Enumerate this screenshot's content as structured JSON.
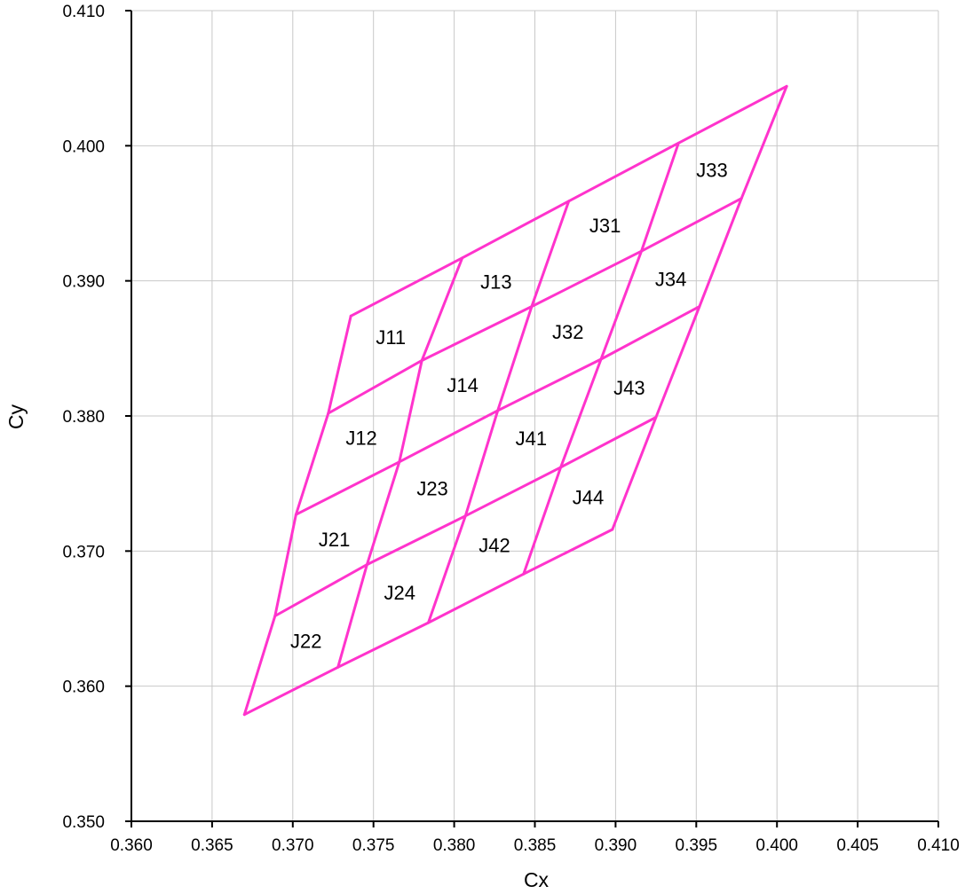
{
  "chart_data": {
    "type": "line",
    "title": "",
    "xlabel": "Cx",
    "ylabel": "Cy",
    "xlim": [
      0.36,
      0.41
    ],
    "ylim": [
      0.35,
      0.41
    ],
    "grid": true,
    "x_ticks": [
      "0.360",
      "0.365",
      "0.370",
      "0.375",
      "0.380",
      "0.385",
      "0.390",
      "0.395",
      "0.400",
      "0.405",
      "0.410"
    ],
    "y_ticks": [
      "0.350",
      "0.360",
      "0.370",
      "0.380",
      "0.390",
      "0.400",
      "0.410"
    ],
    "line_color": "#ff33cc",
    "grid_points": [
      [
        [
          0.3736,
          0.3874
        ],
        [
          0.3805,
          0.3917
        ],
        [
          0.3871,
          0.3959
        ],
        [
          0.3939,
          0.4002
        ],
        [
          0.4006,
          0.4044
        ]
      ],
      [
        [
          0.3722,
          0.3802
        ],
        [
          0.378,
          0.3841
        ],
        [
          0.3848,
          0.3881
        ],
        [
          0.3916,
          0.3922
        ],
        [
          0.3978,
          0.3961
        ]
      ],
      [
        [
          0.3702,
          0.3727
        ],
        [
          0.3766,
          0.3766
        ],
        [
          0.3827,
          0.3804
        ],
        [
          0.3891,
          0.3842
        ],
        [
          0.3952,
          0.3881
        ]
      ],
      [
        [
          0.3689,
          0.3652
        ],
        [
          0.3746,
          0.369
        ],
        [
          0.3807,
          0.3726
        ],
        [
          0.3866,
          0.3762
        ],
        [
          0.3925,
          0.3799
        ]
      ],
      [
        [
          0.367,
          0.3579
        ],
        [
          0.3728,
          0.3614
        ],
        [
          0.3784,
          0.3647
        ],
        [
          0.3843,
          0.3683
        ],
        [
          0.3898,
          0.3716
        ]
      ]
    ],
    "bins": [
      {
        "label": "J11",
        "row": 0,
        "col": 0
      },
      {
        "label": "J13",
        "row": 0,
        "col": 1
      },
      {
        "label": "J31",
        "row": 0,
        "col": 2
      },
      {
        "label": "J33",
        "row": 0,
        "col": 3
      },
      {
        "label": "J12",
        "row": 1,
        "col": 0
      },
      {
        "label": "J14",
        "row": 1,
        "col": 1
      },
      {
        "label": "J32",
        "row": 1,
        "col": 2
      },
      {
        "label": "J34",
        "row": 1,
        "col": 3
      },
      {
        "label": "J21",
        "row": 2,
        "col": 0
      },
      {
        "label": "J23",
        "row": 2,
        "col": 1
      },
      {
        "label": "J41",
        "row": 2,
        "col": 2
      },
      {
        "label": "J43",
        "row": 2,
        "col": 3
      },
      {
        "label": "J22",
        "row": 3,
        "col": 0
      },
      {
        "label": "J24",
        "row": 3,
        "col": 1
      },
      {
        "label": "J42",
        "row": 3,
        "col": 2
      },
      {
        "label": "J44",
        "row": 3,
        "col": 3
      }
    ]
  }
}
